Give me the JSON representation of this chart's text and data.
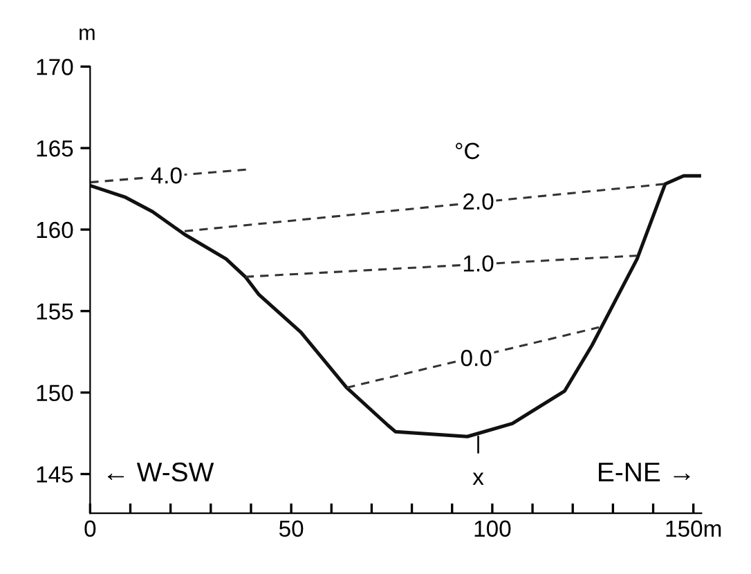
{
  "chart_data": {
    "type": "line",
    "ylabel": "m",
    "xlim": [
      0,
      152
    ],
    "ylim": [
      142.6,
      170
    ],
    "xticks": [
      0,
      {
        "value": 10,
        "label": null
      },
      {
        "value": 20,
        "label": null
      },
      {
        "value": 30,
        "label": null
      },
      {
        "value": 40,
        "label": null
      },
      50,
      {
        "value": 60,
        "label": null
      },
      {
        "value": 70,
        "label": null
      },
      {
        "value": 80,
        "label": null
      },
      {
        "value": 90,
        "label": null
      },
      100,
      {
        "value": 110,
        "label": null
      },
      {
        "value": 120,
        "label": null
      },
      {
        "value": 130,
        "label": null
      },
      {
        "value": 140,
        "label": null
      },
      {
        "value": 150,
        "label": "150m"
      }
    ],
    "yticks": [
      145,
      150,
      155,
      160,
      165,
      170
    ],
    "grid": false,
    "legend": false,
    "marker": "none",
    "series": [
      {
        "color": "#111111",
        "line_style": "solid",
        "x": [
          0,
          8.6,
          15.5,
          23.5,
          33.8,
          38.6,
          42,
          52.4,
          63.8,
          74,
          75.9,
          93.8,
          105,
          118,
          124.8,
          136,
          143,
          147.6,
          151.5
        ],
        "values": [
          162.7,
          162.0,
          161.1,
          159.7,
          158.2,
          157.1,
          156.0,
          153.7,
          150.3,
          148.0,
          147.6,
          147.3,
          148.1,
          150.1,
          152.9,
          158.2,
          162.8,
          163.3,
          163.3
        ]
      },
      {
        "color": "#333333",
        "line_style": "dashed",
        "x": [
          0,
          39.7
        ],
        "values": [
          162.9,
          163.7
        ]
      },
      {
        "color": "#333333",
        "line_style": "dashed",
        "x": [
          23.5,
          143
        ],
        "values": [
          159.9,
          162.8
        ]
      },
      {
        "color": "#333333",
        "line_style": "dashed",
        "x": [
          38.6,
          136
        ],
        "values": [
          157.1,
          158.4
        ]
      },
      {
        "color": "#333333",
        "line_style": "dashed",
        "x": [
          63.8,
          126.5
        ],
        "values": [
          150.3,
          154.0
        ]
      }
    ],
    "annotations": [
      {
        "text": "4.0",
        "x": 19,
        "y": 163.2
      },
      {
        "text": "°C",
        "x": 93.8,
        "y": 164.7
      },
      {
        "text": "2.0",
        "x": 96.5,
        "y": 161.6
      },
      {
        "text": "1.0",
        "x": 96.5,
        "y": 157.8
      },
      {
        "text": "0.0",
        "x": 96,
        "y": 152.0
      },
      {
        "text": "x",
        "x": 96.5,
        "y": 147.3
      },
      "← W-SW",
      "E-NE →"
    ]
  }
}
